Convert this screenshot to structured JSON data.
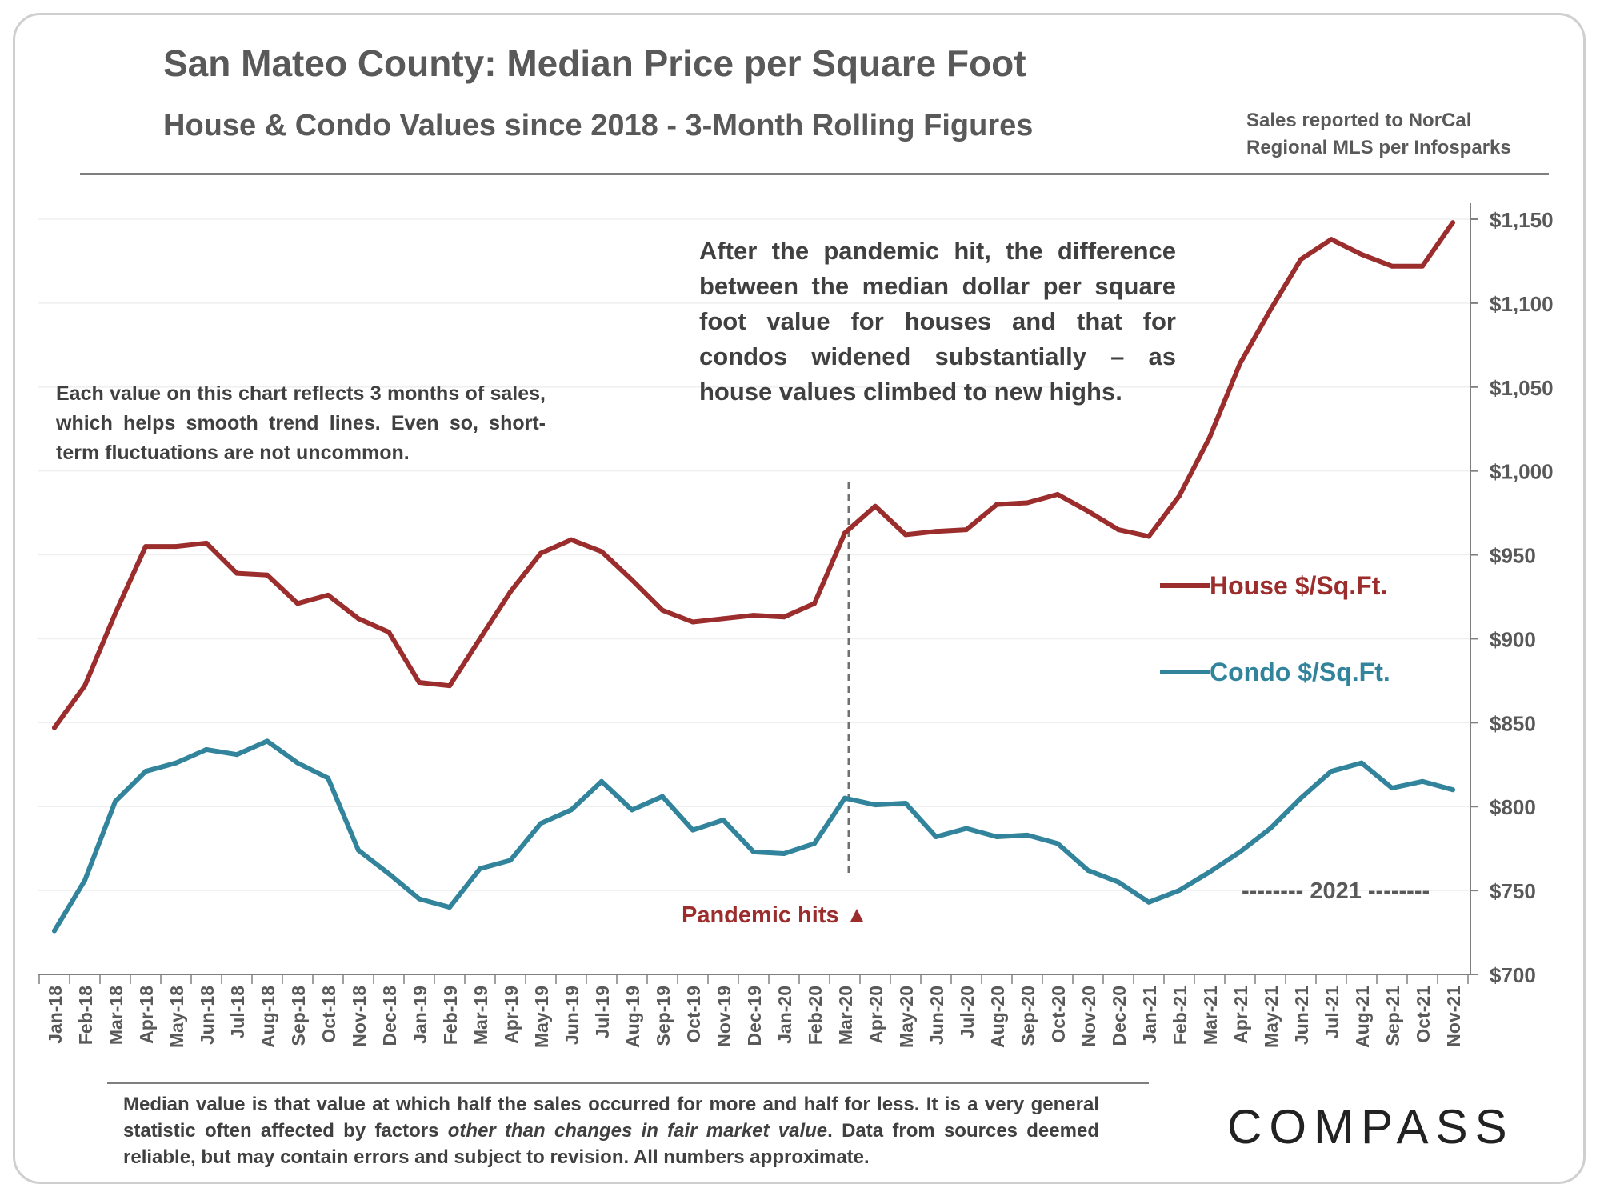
{
  "header": {
    "title": "San Mateo County: Median Price per Square Foot",
    "subtitle": "House & Condo Values since 2018 - 3-Month Rolling Figures",
    "source": "Sales reported to NorCal Regional MLS per Infosparks"
  },
  "annotations": {
    "left_note": "Each value on this chart reflects 3 months of sales, which helps smooth trend lines. Even so, short-term fluctuations are not uncommon.",
    "mid_note": "After the pandemic hit, the difference between the median dollar per square foot value for houses and that for condos widened substantially – as house values climbed to new highs.",
    "pandemic_label": "Pandemic hits ▲",
    "year_label": "-------- 2021 --------"
  },
  "footer": {
    "text_before": "Median value is that value at which half the sales occurred for more and half for less. It is a very general statistic often affected by factors ",
    "text_italic": "other than changes in fair market value",
    "text_after": ". Data from sources deemed reliable, but may contain errors and subject to revision. All numbers approximate.",
    "logo": "COMPASS"
  },
  "colors": {
    "house": "#9b2d2d",
    "condo": "#31849b",
    "grid": "#efefef",
    "axis": "#808080",
    "text": "#595959"
  },
  "chart_data": {
    "type": "line",
    "categories": [
      "Jan-18",
      "Feb-18",
      "Mar-18",
      "Apr-18",
      "May-18",
      "Jun-18",
      "Jul-18",
      "Aug-18",
      "Sep-18",
      "Oct-18",
      "Nov-18",
      "Dec-18",
      "Jan-19",
      "Feb-19",
      "Mar-19",
      "Apr-19",
      "May-19",
      "Jun-19",
      "Jul-19",
      "Aug-19",
      "Sep-19",
      "Oct-19",
      "Nov-19",
      "Dec-19",
      "Jan-20",
      "Feb-20",
      "Mar-20",
      "Apr-20",
      "May-20",
      "Jun-20",
      "Jul-20",
      "Aug-20",
      "Sep-20",
      "Oct-20",
      "Nov-20",
      "Dec-20",
      "Jan-21",
      "Feb-21",
      "Mar-21",
      "Apr-21",
      "May-21",
      "Jun-21",
      "Jul-21",
      "Aug-21",
      "Sep-21",
      "Oct-21",
      "Nov-21"
    ],
    "series": [
      {
        "name": "House $/Sq.Ft.",
        "values": [
          847,
          872,
          915,
          955,
          955,
          957,
          939,
          938,
          921,
          926,
          912,
          904,
          874,
          872,
          900,
          928,
          951,
          959,
          952,
          935,
          917,
          910,
          912,
          914,
          913,
          921,
          963,
          979,
          962,
          964,
          965,
          980,
          981,
          986,
          976,
          965,
          961,
          985,
          1020,
          1064,
          1096,
          1126,
          1138,
          1129,
          1122,
          1122,
          1148
        ]
      },
      {
        "name": "Condo $/Sq.Ft.",
        "values": [
          726,
          756,
          803,
          821,
          826,
          834,
          831,
          839,
          826,
          817,
          774,
          760,
          745,
          740,
          763,
          768,
          790,
          798,
          815,
          798,
          806,
          786,
          792,
          773,
          772,
          778,
          805,
          801,
          802,
          782,
          787,
          782,
          783,
          778,
          762,
          755,
          743,
          750,
          761,
          773,
          787,
          805,
          821,
          826,
          811,
          815,
          810
        ]
      }
    ],
    "ylim": [
      700,
      1150
    ],
    "yticks": [
      700,
      750,
      800,
      850,
      900,
      950,
      1000,
      1050,
      1100,
      1150
    ],
    "ytick_labels": [
      "$700",
      "$750",
      "$800",
      "$850",
      "$900",
      "$950",
      "$1,000",
      "$1,050",
      "$1,100",
      "$1,150"
    ],
    "y_axis_side": "right",
    "grid": true,
    "legend": "right",
    "marker_line_category": "Mar-20"
  }
}
